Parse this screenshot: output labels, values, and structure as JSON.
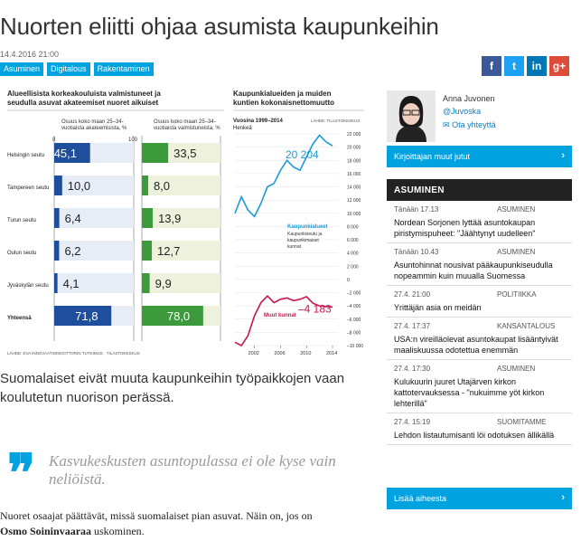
{
  "article": {
    "title": "Nuorten eliitti ohjaa asumista kaupunkeihin",
    "date": "14.4.2016 21:00",
    "tags": [
      "Asuminen",
      "Digitalous",
      "Rakentaminen"
    ],
    "lead": "Suomalaiset eivät muuta kaupunkeihin työpaikkojen vaan koulutetun nuoriso­n perässä.",
    "quote": "Kasvukeskusten asuntopulassa ei ole kyse vain neliöistä.",
    "body_pre": "Nuoret osaajat päättävät, missä suomalaiset pian asuvat. Näin on, jos on ",
    "body_bold": "Osmo Soininvaaraa",
    "body_post": " uskominen."
  },
  "share": {
    "facebook": "f",
    "twitter": "t",
    "linkedin": "in",
    "googleplus": "g+",
    "colors": {
      "facebook": "#3b5998",
      "twitter": "#1da1f2",
      "linkedin": "#0077b5",
      "googleplus": "#dd4b39"
    }
  },
  "sidebar": {
    "author_name": "Anna Juvonen",
    "author_handle": "@Juvoska",
    "author_contact": "Ota yhteyttä",
    "author_more": "Kirjoittajan muut jutut",
    "section_title": "ASUMINEN",
    "more_topic": "Lisää aiheesta",
    "news": [
      {
        "time": "Tänään 17.13",
        "category": "ASUMINEN",
        "title": "Nordean Sorjonen lyttää asuntokaupan piristymispuheet: \"Jäähtynyt uudelleen\""
      },
      {
        "time": "Tänään 10.43",
        "category": "ASUMINEN",
        "title": "Asuntohinnat nousivat pääkaupunkiseudulla nopeammin kuin muualla Suomessa"
      },
      {
        "time": "27.4. 21:00",
        "category": "POLITIIKKA",
        "title": "Yrittäjän asia on meidän"
      },
      {
        "time": "27.4. 17:37",
        "category": "KANSANTALOUS",
        "title": "USA:n vireilläolevat asuntokaupat lisääntyivät maaliskuussa odotettua enemmän"
      },
      {
        "time": "27.4. 17:30",
        "category": "ASUMINEN",
        "title": "Kulukuurin juuret Utajärven kirkon kattotervauksessa - \"nukuimme yöt kirkon lehterillä\""
      },
      {
        "time": "27.4. 15:19",
        "category": "SUOMITAMME",
        "title": "Lehdon listautumisanti löi odotuksen ällikällä"
      }
    ]
  },
  "chart_data": [
    {
      "type": "bar",
      "title": "Alueellisista korkeakouluista valmistuneet ja seudulla asuvat akateemiset nuoret aikuiset",
      "series": [
        {
          "name": "Osuus koko maan 25–34-vuotiaista akateemisista, %",
          "values": [
            45.1,
            10.0,
            6.4,
            6.2,
            4.1,
            71.8
          ],
          "labels": [
            "45,1",
            "10,0",
            "6,4",
            "6,2",
            "4,1",
            "71,8"
          ]
        },
        {
          "name": "Osuus koko maan 25–34-vuotiaista valmistuneista, %",
          "values": [
            33.5,
            8.0,
            13.9,
            12.7,
            9.9,
            78.0
          ],
          "labels": [
            "33,5",
            "8,0",
            "13,9",
            "12,7",
            "9,9",
            "78,0"
          ]
        }
      ],
      "categories": [
        "Helsingin seutu",
        "Tampereen seutu",
        "Turun seutu",
        "Oulun seutu",
        "Jyväskylän seutu",
        "Yhteensä"
      ],
      "xlim": [
        0,
        100
      ],
      "tick_labels": [
        "0",
        "100"
      ],
      "source": "LÄHDE: EVA INNOVAATIOMOOTTORIN TUTKIMUS"
    },
    {
      "type": "line",
      "title": "Kaupunkialueiden ja muiden kuntien kokonaisnettomuutto",
      "subtitle": "Vuosina 1999–2014",
      "unit": "Henkeä",
      "source": "LÄHDE: TILASTOKESKUS",
      "x": [
        1999,
        2000,
        2001,
        2002,
        2003,
        2004,
        2005,
        2006,
        2007,
        2008,
        2009,
        2010,
        2011,
        2012,
        2013,
        2014
      ],
      "series": [
        {
          "name": "Kaupunkialueet",
          "note": "Kaupunkiseutu ja kaupunkimaiset kunnat",
          "values": [
            10000,
            12500,
            10500,
            9500,
            11500,
            14000,
            14500,
            16500,
            18000,
            17000,
            16500,
            18500,
            20500,
            21800,
            20800,
            20204
          ],
          "end_label": "20 204"
        },
        {
          "name": "Muut kunnat",
          "values": [
            -9500,
            -10000,
            -8500,
            -5500,
            -3500,
            -2500,
            -3500,
            -3000,
            -2800,
            -3200,
            -3000,
            -2600,
            -3600,
            -4000,
            -4100,
            -4183
          ],
          "end_label": "–4 183"
        }
      ],
      "ylim": [
        -10000,
        22000
      ],
      "y_ticks": [
        "22 000",
        "20 000",
        "18 000",
        "16 000",
        "14 000",
        "12 000",
        "10 000",
        "8 000",
        "6 000",
        "4 000",
        "2 000",
        "0",
        "–2 000",
        "–4 000",
        "–6 000",
        "–8 000",
        "–10 000"
      ],
      "x_ticks": [
        "2002",
        "2006",
        "2010",
        "2014"
      ]
    }
  ]
}
